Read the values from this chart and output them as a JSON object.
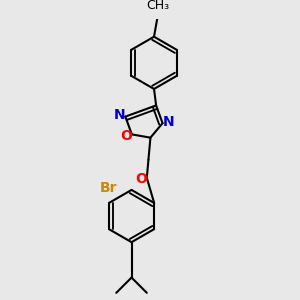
{
  "background_color": "#e8e8e8",
  "bond_color": "#000000",
  "bond_width": 1.5,
  "atom_colors": {
    "N": "#0000cc",
    "O_ring": "#ff0000",
    "O_ether": "#ff0000",
    "Br": "#cc8800",
    "C": "#000000"
  },
  "font_size_atom": 10,
  "figure_size": [
    3.0,
    3.0
  ],
  "dpi": 100,
  "xlim": [
    -1.5,
    2.5
  ],
  "ylim": [
    -3.8,
    3.2
  ]
}
